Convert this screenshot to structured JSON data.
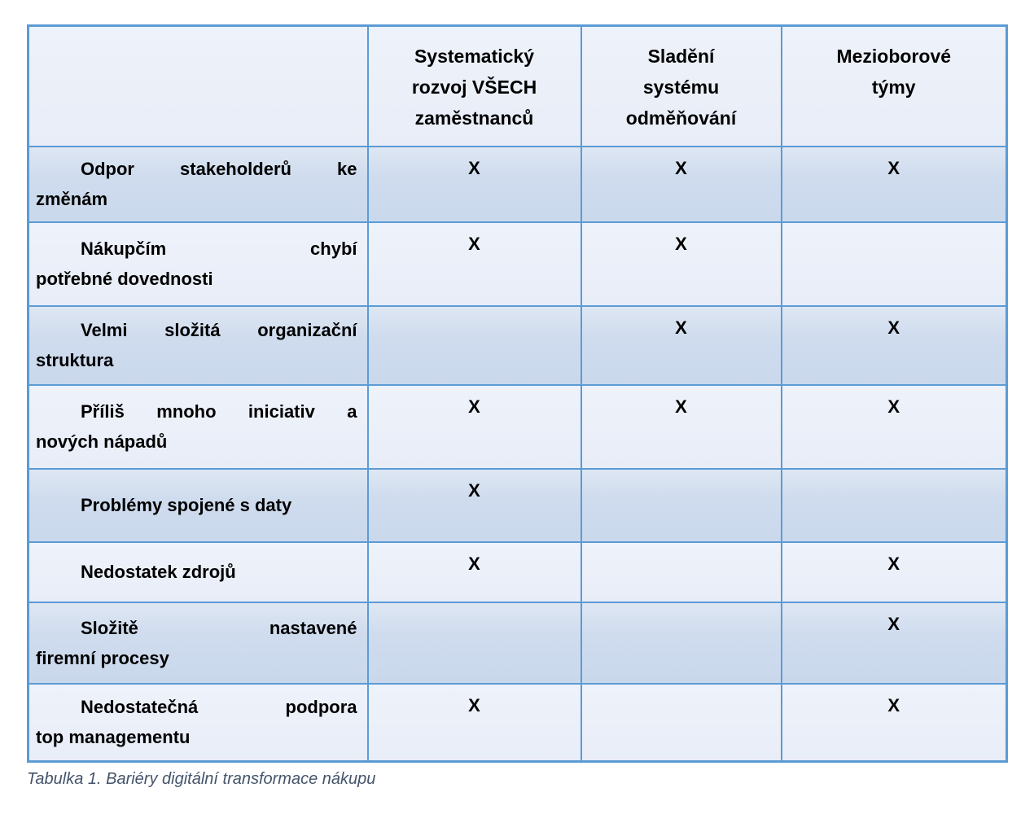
{
  "table": {
    "mark": "X",
    "columns": [
      {
        "lines": []
      },
      {
        "lines": [
          "Systematický",
          "rozvoj VŠECH",
          "zaměstnanců"
        ]
      },
      {
        "lines": [
          "Sladění",
          "systému",
          "odměňování"
        ]
      },
      {
        "lines": [
          "Mezioborové",
          "týmy"
        ]
      }
    ],
    "rows": [
      {
        "lines": [
          "Odpor stakeholderů ke",
          "změnám"
        ],
        "marks": [
          true,
          true,
          true
        ]
      },
      {
        "lines": [
          "Nákupčím chybí",
          "potřebné dovednosti"
        ],
        "marks": [
          true,
          true,
          false
        ]
      },
      {
        "lines": [
          "Velmi složitá organizační",
          "struktura"
        ],
        "marks": [
          false,
          true,
          true
        ]
      },
      {
        "lines": [
          "Příliš mnoho iniciativ a",
          "nových nápadů"
        ],
        "marks": [
          true,
          true,
          true
        ]
      },
      {
        "lines": [
          "Problémy spojené s daty"
        ],
        "marks": [
          true,
          false,
          false
        ]
      },
      {
        "lines": [
          "Nedostatek zdrojů"
        ],
        "marks": [
          true,
          false,
          true
        ]
      },
      {
        "lines": [
          "Složitě nastavené",
          "firemní procesy"
        ],
        "marks": [
          false,
          false,
          true
        ]
      },
      {
        "lines": [
          "Nedostatečná podpora",
          "top managementu"
        ],
        "marks": [
          true,
          false,
          true
        ]
      }
    ],
    "caption": "Tabulka 1. Bariéry digitální transformace nákupu"
  },
  "colors": {
    "grid_border": "#5b9bd5",
    "row_dark": "#cfdcee",
    "row_light": "#e8edf8",
    "header_bg": "#e8edf7",
    "table_text": "#000000",
    "caption_text": "#44546a",
    "page_background": "#ffffff"
  }
}
